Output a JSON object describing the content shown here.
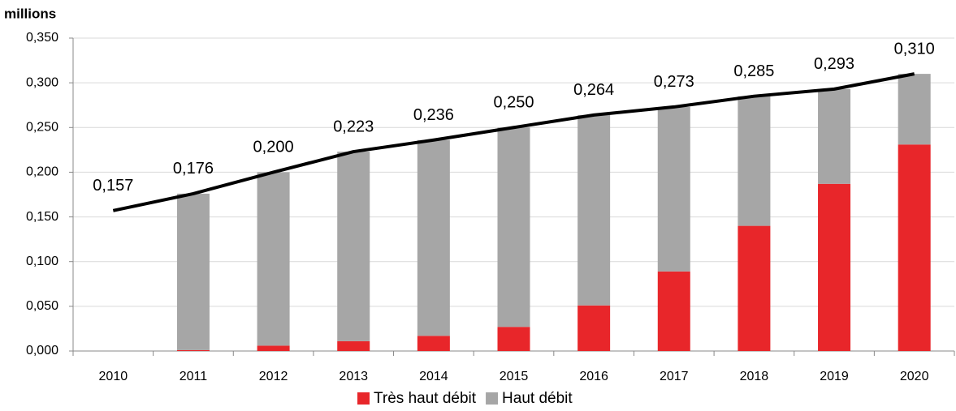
{
  "chart_data": {
    "type": "bar",
    "stacked": true,
    "y_unit_label": "millions",
    "categories": [
      "2010",
      "2011",
      "2012",
      "2013",
      "2014",
      "2015",
      "2016",
      "2017",
      "2018",
      "2019",
      "2020"
    ],
    "series": [
      {
        "name": "Très haut débit",
        "color": "#e8262a",
        "values": [
          null,
          0.001,
          0.006,
          0.011,
          0.017,
          0.027,
          0.051,
          0.089,
          0.14,
          0.187,
          0.231
        ]
      },
      {
        "name": "Haut débit",
        "color": "#a6a6a6",
        "values": [
          null,
          0.175,
          0.194,
          0.212,
          0.219,
          0.223,
          0.213,
          0.184,
          0.145,
          0.106,
          0.079
        ]
      }
    ],
    "line": {
      "color": "#000000",
      "values": [
        0.157,
        0.176,
        0.2,
        0.223,
        0.236,
        0.25,
        0.264,
        0.273,
        0.285,
        0.293,
        0.31
      ],
      "value_labels": [
        "0,157",
        "0,176",
        "0,200",
        "0,223",
        "0,236",
        "0,250",
        "0,264",
        "0,273",
        "0,285",
        "0,293",
        "0,310"
      ]
    },
    "ylim": [
      0,
      0.35
    ],
    "yticks": [
      {
        "value": 0,
        "label": "0,000"
      },
      {
        "value": 0.05,
        "label": "0,050"
      },
      {
        "value": 0.1,
        "label": "0,100"
      },
      {
        "value": 0.15,
        "label": "0,150"
      },
      {
        "value": 0.2,
        "label": "0,200"
      },
      {
        "value": 0.25,
        "label": "0,250"
      },
      {
        "value": 0.3,
        "label": "0,300"
      },
      {
        "value": 0.35,
        "label": "0,350"
      }
    ],
    "grid": true,
    "legend": "bottom"
  }
}
